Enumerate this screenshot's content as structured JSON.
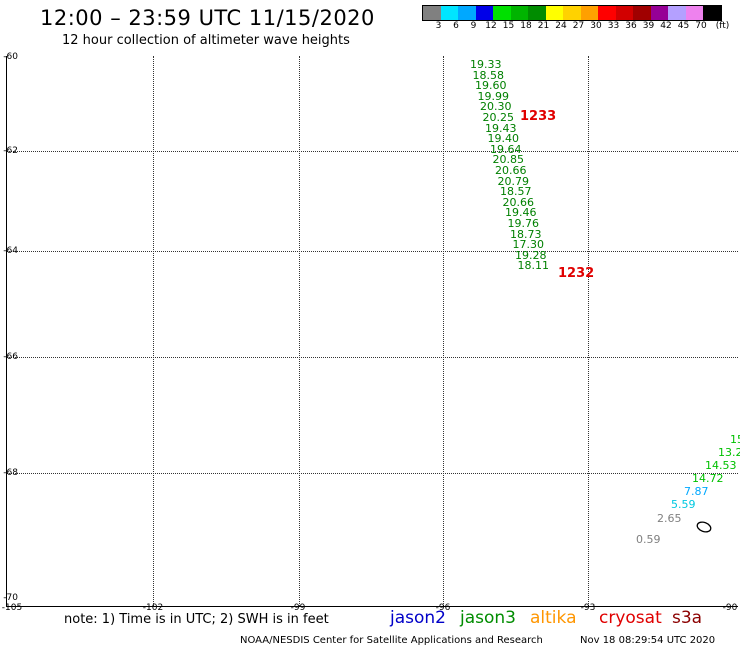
{
  "header": {
    "title": "12:00 – 23:59 UTC 11/15/2020",
    "subtitle": "12 hour collection of altimeter wave heights"
  },
  "colorbar": {
    "colors": [
      "#808080",
      "#00e5ff",
      "#00a8ff",
      "#0000e8",
      "#00e000",
      "#00b400",
      "#008c00",
      "#ffff00",
      "#ffd200",
      "#ffa000",
      "#ff0000",
      "#d20000",
      "#a00000",
      "#960096",
      "#b4a0ff",
      "#ee82ee",
      "#000000"
    ],
    "labels": [
      "3",
      "6",
      "9",
      "12",
      "15",
      "18",
      "21",
      "24",
      "27",
      "30",
      "33",
      "36",
      "39",
      "42",
      "45",
      "70",
      "(ft)"
    ]
  },
  "axes": {
    "y_labels": [
      "-60",
      "-62",
      "-64",
      "-66",
      "-68",
      "-70"
    ],
    "x_labels": [
      "-105",
      "-102",
      "-99",
      "-96",
      "-93",
      "-90"
    ]
  },
  "track_a": [
    {
      "v": "19.33",
      "c": "#008000"
    },
    {
      "v": "18.58",
      "c": "#008000"
    },
    {
      "v": "19.60",
      "c": "#008000"
    },
    {
      "v": "19.99",
      "c": "#008000"
    },
    {
      "v": "20.30",
      "c": "#008000"
    },
    {
      "v": "20.25",
      "c": "#008000"
    },
    {
      "v": "19.43",
      "c": "#008000"
    },
    {
      "v": "19.40",
      "c": "#008000"
    },
    {
      "v": "19.64",
      "c": "#008000"
    },
    {
      "v": "20.85",
      "c": "#008000"
    },
    {
      "v": "20.66",
      "c": "#008000"
    },
    {
      "v": "20.79",
      "c": "#008000"
    },
    {
      "v": "18.57",
      "c": "#008000"
    },
    {
      "v": "20.66",
      "c": "#008000"
    },
    {
      "v": "19.46",
      "c": "#008000"
    },
    {
      "v": "19.76",
      "c": "#008000"
    },
    {
      "v": "18.73",
      "c": "#008000"
    },
    {
      "v": "17.30",
      "c": "#008000"
    },
    {
      "v": "19.28",
      "c": "#008000"
    },
    {
      "v": "18.11",
      "c": "#008000"
    }
  ],
  "track_b": [
    {
      "v": "15",
      "c": "#00c000"
    },
    {
      "v": "13.2",
      "c": "#00c000"
    },
    {
      "v": "14.53",
      "c": "#00c000"
    },
    {
      "v": "14.72",
      "c": "#00c000"
    },
    {
      "v": "7.87",
      "c": "#00a8ff"
    },
    {
      "v": "5.59",
      "c": "#00c8e0"
    },
    {
      "v": "2.65",
      "c": "#808080"
    },
    {
      "v": "0.59",
      "c": "#808080"
    }
  ],
  "pass_labels": [
    "1233",
    "1232"
  ],
  "note": "note: 1) Time is in UTC; 2) SWH is in feet",
  "legend": [
    {
      "name": "jason2",
      "color": "#0000c8"
    },
    {
      "name": "jason3",
      "color": "#008c00"
    },
    {
      "name": "altika",
      "color": "#ff9600"
    },
    {
      "name": "cryosat",
      "color": "#e00000"
    },
    {
      "name": "s3a",
      "color": "#8b0000"
    }
  ],
  "footer": {
    "credit": "NOAA/NESDIS Center for Satellite Applications and Research",
    "timestamp": "Nov 18 08:29:54 UTC 2020"
  }
}
